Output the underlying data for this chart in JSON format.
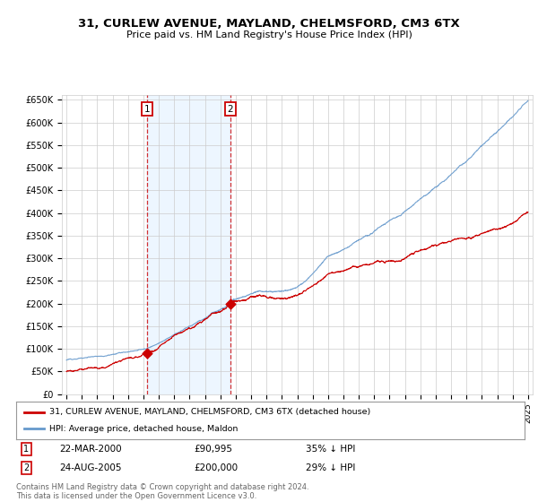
{
  "title": "31, CURLEW AVENUE, MAYLAND, CHELMSFORD, CM3 6TX",
  "subtitle": "Price paid vs. HM Land Registry's House Price Index (HPI)",
  "legend_line1": "31, CURLEW AVENUE, MAYLAND, CHELMSFORD, CM3 6TX (detached house)",
  "legend_line2": "HPI: Average price, detached house, Maldon",
  "footer": "Contains HM Land Registry data © Crown copyright and database right 2024.\nThis data is licensed under the Open Government Licence v3.0.",
  "point1_date": "22-MAR-2000",
  "point1_price": "£90,995",
  "point1_hpi": "35% ↓ HPI",
  "point1_year": 2000.22,
  "point1_value": 90995,
  "point2_date": "24-AUG-2005",
  "point2_price": "£200,000",
  "point2_hpi": "29% ↓ HPI",
  "point2_year": 2005.65,
  "point2_value": 200000,
  "ylim": [
    0,
    660000
  ],
  "yticks": [
    0,
    50000,
    100000,
    150000,
    200000,
    250000,
    300000,
    350000,
    400000,
    450000,
    500000,
    550000,
    600000,
    650000
  ],
  "red_color": "#cc0000",
  "blue_color": "#6699cc",
  "background_color": "#ffffff",
  "grid_color": "#cccccc",
  "shade_color": "#ddeeff"
}
